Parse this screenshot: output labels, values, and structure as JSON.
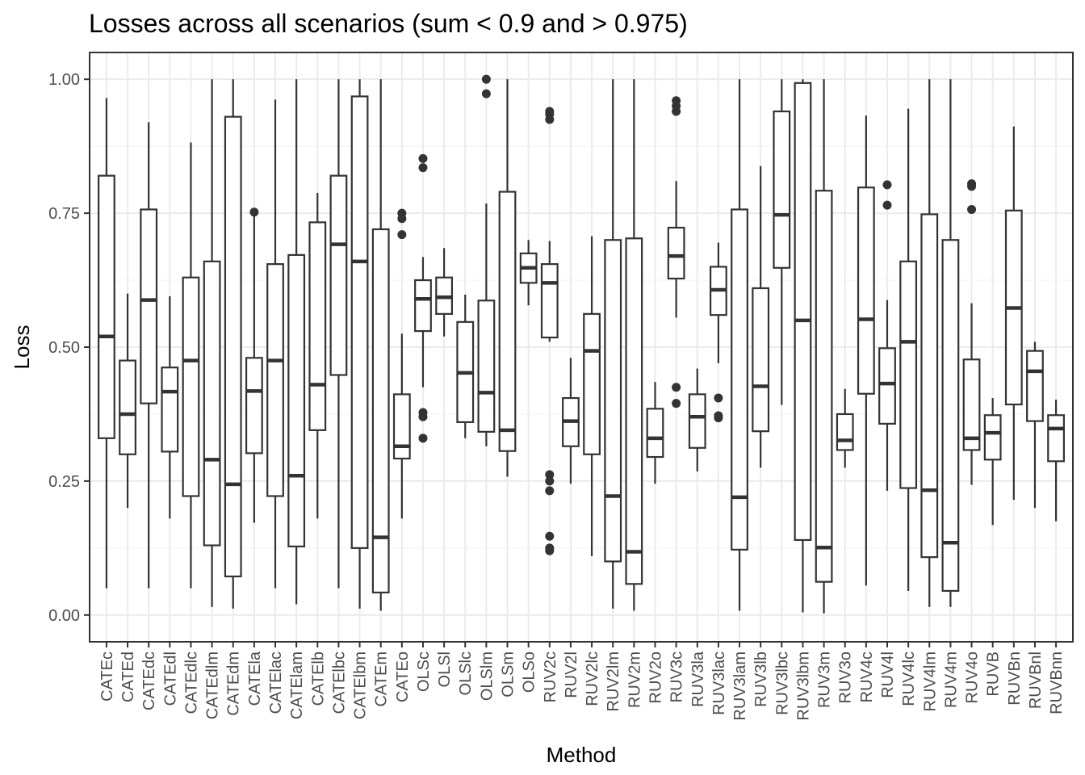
{
  "chart_data": {
    "type": "boxplot",
    "title": "Losses across all scenarios (sum < 0.9 and > 0.975)",
    "xlabel": "Method",
    "ylabel": "Loss",
    "ylim": [
      -0.05,
      1.05
    ],
    "yticks": [
      0.0,
      0.25,
      0.5,
      0.75,
      1.0
    ],
    "ytick_labels": [
      "0.00",
      "0.25",
      "0.50",
      "0.75",
      "1.00"
    ],
    "grid": true,
    "colors": {
      "box_stroke": "#333333",
      "grid_major": "#ebebeb",
      "grid_minor": "#f5f5f5",
      "panel_border": "#333333",
      "outlier": "#333333"
    },
    "boxes": [
      {
        "name": "CATEc",
        "min": 0.05,
        "q1": 0.33,
        "median": 0.52,
        "q3": 0.82,
        "max": 0.965,
        "outliers": []
      },
      {
        "name": "CATEd",
        "min": 0.2,
        "q1": 0.3,
        "median": 0.375,
        "q3": 0.475,
        "max": 0.6,
        "outliers": []
      },
      {
        "name": "CATEdc",
        "min": 0.05,
        "q1": 0.395,
        "median": 0.588,
        "q3": 0.757,
        "max": 0.92,
        "outliers": []
      },
      {
        "name": "CATEdl",
        "min": 0.18,
        "q1": 0.305,
        "median": 0.417,
        "q3": 0.462,
        "max": 0.595,
        "outliers": []
      },
      {
        "name": "CATEdlc",
        "min": 0.05,
        "q1": 0.222,
        "median": 0.475,
        "q3": 0.63,
        "max": 0.882,
        "outliers": []
      },
      {
        "name": "CATEdlm",
        "min": 0.015,
        "q1": 0.13,
        "median": 0.29,
        "q3": 0.66,
        "max": 1.0,
        "outliers": []
      },
      {
        "name": "CATEdm",
        "min": 0.012,
        "q1": 0.072,
        "median": 0.244,
        "q3": 0.93,
        "max": 1.0,
        "outliers": []
      },
      {
        "name": "CATEla",
        "min": 0.172,
        "q1": 0.302,
        "median": 0.418,
        "q3": 0.48,
        "max": 0.745,
        "outliers": [
          0.752
        ]
      },
      {
        "name": "CATElac",
        "min": 0.05,
        "q1": 0.222,
        "median": 0.475,
        "q3": 0.655,
        "max": 0.962,
        "outliers": []
      },
      {
        "name": "CATElam",
        "min": 0.02,
        "q1": 0.128,
        "median": 0.26,
        "q3": 0.672,
        "max": 1.0,
        "outliers": []
      },
      {
        "name": "CATElb",
        "min": 0.18,
        "q1": 0.345,
        "median": 0.43,
        "q3": 0.733,
        "max": 0.788,
        "outliers": []
      },
      {
        "name": "CATElbc",
        "min": 0.05,
        "q1": 0.448,
        "median": 0.692,
        "q3": 0.82,
        "max": 1.0,
        "outliers": []
      },
      {
        "name": "CATElbm",
        "min": 0.012,
        "q1": 0.125,
        "median": 0.66,
        "q3": 0.968,
        "max": 1.0,
        "outliers": []
      },
      {
        "name": "CATEm",
        "min": 0.008,
        "q1": 0.042,
        "median": 0.145,
        "q3": 0.72,
        "max": 1.0,
        "outliers": []
      },
      {
        "name": "CATEo",
        "min": 0.18,
        "q1": 0.292,
        "median": 0.315,
        "q3": 0.412,
        "max": 0.525,
        "outliers": [
          0.71,
          0.74,
          0.75
        ]
      },
      {
        "name": "OLSc",
        "min": 0.425,
        "q1": 0.53,
        "median": 0.59,
        "q3": 0.625,
        "max": 0.668,
        "outliers": [
          0.33,
          0.37,
          0.378,
          0.835,
          0.852
        ]
      },
      {
        "name": "OLSl",
        "min": 0.52,
        "q1": 0.562,
        "median": 0.593,
        "q3": 0.63,
        "max": 0.685,
        "outliers": []
      },
      {
        "name": "OLSlc",
        "min": 0.33,
        "q1": 0.36,
        "median": 0.452,
        "q3": 0.547,
        "max": 0.598,
        "outliers": []
      },
      {
        "name": "OLSlm",
        "min": 0.315,
        "q1": 0.342,
        "median": 0.415,
        "q3": 0.587,
        "max": 0.768,
        "outliers": [
          0.973,
          1.0
        ]
      },
      {
        "name": "OLSm",
        "min": 0.258,
        "q1": 0.306,
        "median": 0.345,
        "q3": 0.79,
        "max": 1.0,
        "outliers": []
      },
      {
        "name": "OLSo",
        "min": 0.578,
        "q1": 0.62,
        "median": 0.648,
        "q3": 0.675,
        "max": 0.7,
        "outliers": []
      },
      {
        "name": "RUV2c",
        "min": 0.51,
        "q1": 0.518,
        "median": 0.62,
        "q3": 0.655,
        "max": 0.698,
        "outliers": [
          0.12,
          0.125,
          0.147,
          0.232,
          0.25,
          0.262,
          0.925,
          0.935,
          0.94
        ]
      },
      {
        "name": "RUV2l",
        "min": 0.245,
        "q1": 0.315,
        "median": 0.362,
        "q3": 0.405,
        "max": 0.48,
        "outliers": []
      },
      {
        "name": "RUV2lc",
        "min": 0.11,
        "q1": 0.3,
        "median": 0.493,
        "q3": 0.562,
        "max": 0.707,
        "outliers": []
      },
      {
        "name": "RUV2lm",
        "min": 0.012,
        "q1": 0.1,
        "median": 0.222,
        "q3": 0.7,
        "max": 1.0,
        "outliers": []
      },
      {
        "name": "RUV2m",
        "min": 0.008,
        "q1": 0.058,
        "median": 0.118,
        "q3": 0.703,
        "max": 1.0,
        "outliers": []
      },
      {
        "name": "RUV2o",
        "min": 0.245,
        "q1": 0.295,
        "median": 0.33,
        "q3": 0.385,
        "max": 0.435,
        "outliers": []
      },
      {
        "name": "RUV3c",
        "min": 0.555,
        "q1": 0.628,
        "median": 0.67,
        "q3": 0.723,
        "max": 0.81,
        "outliers": [
          0.395,
          0.425,
          0.94,
          0.95,
          0.96
        ]
      },
      {
        "name": "RUV3la",
        "min": 0.268,
        "q1": 0.312,
        "median": 0.37,
        "q3": 0.412,
        "max": 0.46,
        "outliers": []
      },
      {
        "name": "RUV3lac",
        "min": 0.47,
        "q1": 0.56,
        "median": 0.607,
        "q3": 0.65,
        "max": 0.695,
        "outliers": [
          0.368,
          0.372,
          0.405
        ]
      },
      {
        "name": "RUV3lam",
        "min": 0.008,
        "q1": 0.122,
        "median": 0.22,
        "q3": 0.757,
        "max": 1.0,
        "outliers": []
      },
      {
        "name": "RUV3lb",
        "min": 0.275,
        "q1": 0.343,
        "median": 0.427,
        "q3": 0.61,
        "max": 0.838,
        "outliers": []
      },
      {
        "name": "RUV3lbc",
        "min": 0.392,
        "q1": 0.648,
        "median": 0.747,
        "q3": 0.94,
        "max": 1.0,
        "outliers": []
      },
      {
        "name": "RUV3lbm",
        "min": 0.005,
        "q1": 0.14,
        "median": 0.55,
        "q3": 0.993,
        "max": 1.0,
        "outliers": []
      },
      {
        "name": "RUV3m",
        "min": 0.003,
        "q1": 0.062,
        "median": 0.126,
        "q3": 0.792,
        "max": 1.0,
        "outliers": []
      },
      {
        "name": "RUV3o",
        "min": 0.275,
        "q1": 0.308,
        "median": 0.326,
        "q3": 0.375,
        "max": 0.422,
        "outliers": []
      },
      {
        "name": "RUV4c",
        "min": 0.055,
        "q1": 0.413,
        "median": 0.552,
        "q3": 0.798,
        "max": 0.932,
        "outliers": []
      },
      {
        "name": "RUV4l",
        "min": 0.232,
        "q1": 0.357,
        "median": 0.432,
        "q3": 0.498,
        "max": 0.588,
        "outliers": [
          0.765,
          0.803
        ]
      },
      {
        "name": "RUV4lc",
        "min": 0.045,
        "q1": 0.237,
        "median": 0.51,
        "q3": 0.66,
        "max": 0.945,
        "outliers": []
      },
      {
        "name": "RUV4lm",
        "min": 0.015,
        "q1": 0.108,
        "median": 0.233,
        "q3": 0.748,
        "max": 1.0,
        "outliers": []
      },
      {
        "name": "RUV4m",
        "min": 0.015,
        "q1": 0.045,
        "median": 0.135,
        "q3": 0.7,
        "max": 1.0,
        "outliers": []
      },
      {
        "name": "RUV4o",
        "min": 0.243,
        "q1": 0.308,
        "median": 0.33,
        "q3": 0.477,
        "max": 0.582,
        "outliers": [
          0.757,
          0.8,
          0.805
        ]
      },
      {
        "name": "RUVB",
        "min": 0.168,
        "q1": 0.29,
        "median": 0.34,
        "q3": 0.373,
        "max": 0.405,
        "outliers": []
      },
      {
        "name": "RUVBn",
        "min": 0.215,
        "q1": 0.393,
        "median": 0.573,
        "q3": 0.755,
        "max": 0.912,
        "outliers": []
      },
      {
        "name": "RUVBnl",
        "min": 0.2,
        "q1": 0.362,
        "median": 0.455,
        "q3": 0.493,
        "max": 0.51,
        "outliers": []
      },
      {
        "name": "RUVBnn",
        "min": 0.175,
        "q1": 0.287,
        "median": 0.348,
        "q3": 0.373,
        "max": 0.402,
        "outliers": []
      }
    ]
  }
}
